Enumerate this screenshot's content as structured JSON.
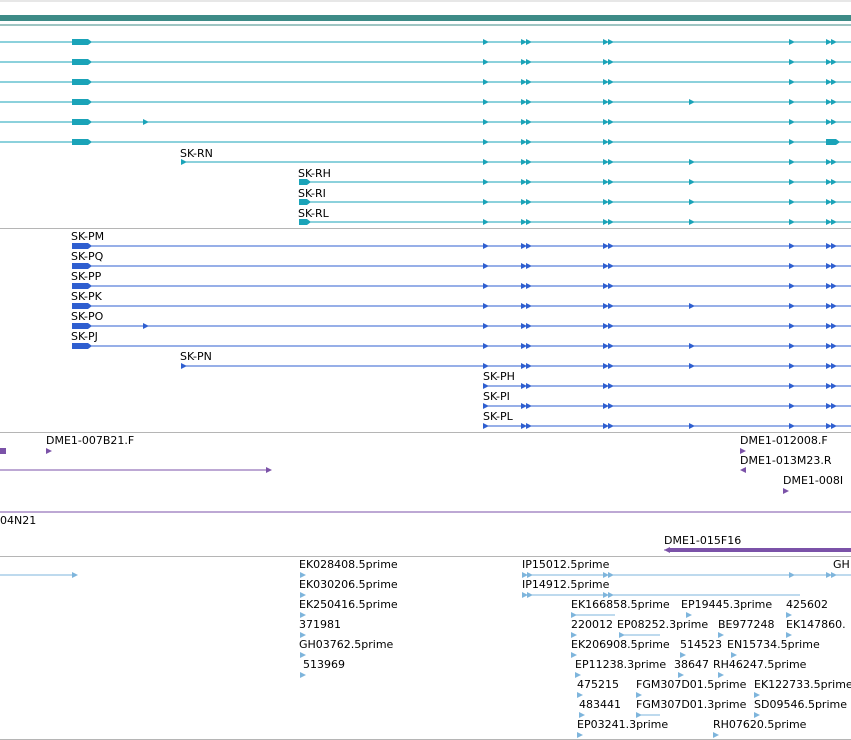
{
  "colors": {
    "scale_bar": "#3d8b87",
    "track_a": "#1aa3b8",
    "track_b": "#2f5fd0",
    "track_c": "#7b52a8",
    "track_d": "#7eb5dc",
    "divider": "#b5b5b5"
  },
  "track_a": {
    "labels": [
      "SK-RN",
      "SK-RH",
      "SK-RI",
      "SK-RL"
    ]
  },
  "track_b": {
    "labels": [
      "SK-PM",
      "SK-PQ",
      "SK-PP",
      "SK-PK",
      "SK-PO",
      "SK-PJ",
      "SK-PN",
      "SK-PH",
      "SK-PI",
      "SK-PL"
    ]
  },
  "track_c": {
    "labels": [
      "DME1-007B21.F",
      "DME1-012008.F",
      "DME1-013M23.R",
      "DME1-008I",
      "04N21",
      "DME1-015F16"
    ]
  },
  "track_d": {
    "labels": [
      "EK028408.5prime",
      "EK030206.5prime",
      "EK250416.5prime",
      "371981",
      "GH03762.5prime",
      "513969",
      "IP15012.5prime",
      "IP14912.5prime",
      "GH",
      "EK166858.5prime",
      "EP19445.3prime",
      "425602",
      "220012",
      "EP08252.3prime",
      "BE977248",
      "EK147860.",
      "EK206908.5prime",
      "514523",
      "EN15734.5prime",
      "EP11238.3prime",
      "38647",
      "RH46247.5prime",
      "475215",
      "FGM307D01.5prime",
      "EK122733.5prime",
      "483441",
      "FGM307D01.3prime",
      "SD09546.5prime",
      "EP03241.3prime",
      "RH07620.5prime"
    ]
  }
}
